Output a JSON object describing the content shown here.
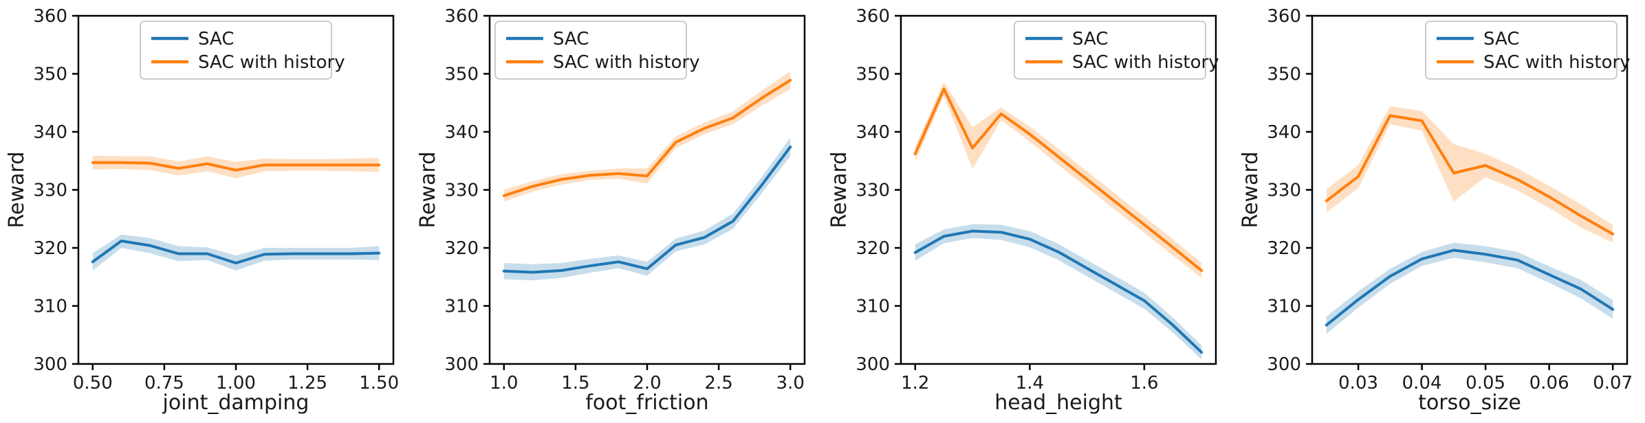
{
  "figure": {
    "ylabel": "Reward",
    "legend_entries": [
      "SAC",
      "SAC with history"
    ],
    "colors": {
      "sac": "#1f77b4",
      "sac_with_history": "#ff7f0e",
      "axis": "#000000",
      "text": "#1a1a1a",
      "legend_border": "#cccccc",
      "background": "#ffffff"
    },
    "band_alpha": 0.25
  },
  "chart_data": [
    {
      "type": "line",
      "title": "",
      "xlabel": "joint_damping",
      "ylabel": "Reward",
      "ylim": [
        300,
        360
      ],
      "yticks": [
        300,
        310,
        320,
        330,
        340,
        350,
        360
      ],
      "xticks": [
        {
          "v": 0.5,
          "label": "0.50"
        },
        {
          "v": 0.75,
          "label": "0.75"
        },
        {
          "v": 1.0,
          "label": "1.00"
        },
        {
          "v": 1.25,
          "label": "1.25"
        },
        {
          "v": 1.5,
          "label": "1.50"
        }
      ],
      "x": [
        0.5,
        0.6,
        0.7,
        0.8,
        0.9,
        1.0,
        1.1,
        1.2,
        1.3,
        1.4,
        1.5
      ],
      "legend_pos": "upper-center",
      "grid": false,
      "series": [
        {
          "name": "SAC",
          "color": "#1f77b4",
          "values": [
            317.6,
            321.2,
            320.4,
            319.0,
            319.0,
            317.4,
            318.9,
            319.0,
            319.0,
            319.0,
            319.1
          ],
          "lo": [
            316.1,
            320.0,
            319.1,
            317.7,
            317.9,
            316.1,
            317.8,
            318.0,
            318.0,
            318.0,
            317.9
          ],
          "hi": [
            319.1,
            322.3,
            321.7,
            320.3,
            320.1,
            318.7,
            320.0,
            320.0,
            320.0,
            320.0,
            320.3
          ]
        },
        {
          "name": "SAC with history",
          "color": "#ff7f0e",
          "values": [
            334.7,
            334.7,
            334.6,
            333.7,
            334.5,
            333.4,
            334.3,
            334.3,
            334.3,
            334.3,
            334.3
          ],
          "lo": [
            333.5,
            333.6,
            333.4,
            332.5,
            333.2,
            332.0,
            333.2,
            333.3,
            333.3,
            333.2,
            333.1
          ],
          "hi": [
            335.9,
            335.8,
            335.8,
            334.9,
            335.8,
            334.8,
            335.4,
            335.3,
            335.3,
            335.4,
            335.5
          ]
        }
      ]
    },
    {
      "type": "line",
      "title": "",
      "xlabel": "foot_friction",
      "ylabel": "Reward",
      "ylim": [
        300,
        360
      ],
      "yticks": [
        300,
        310,
        320,
        330,
        340,
        350,
        360
      ],
      "xticks": [
        {
          "v": 1.0,
          "label": "1.0"
        },
        {
          "v": 1.5,
          "label": "1.5"
        },
        {
          "v": 2.0,
          "label": "2.0"
        },
        {
          "v": 2.5,
          "label": "2.5"
        },
        {
          "v": 3.0,
          "label": "3.0"
        }
      ],
      "x": [
        1.0,
        1.2,
        1.4,
        1.6,
        1.8,
        2.0,
        2.2,
        2.4,
        2.6,
        2.8,
        3.0
      ],
      "legend_pos": "upper-left",
      "grid": false,
      "series": [
        {
          "name": "SAC",
          "color": "#1f77b4",
          "values": [
            316.0,
            315.8,
            316.1,
            316.9,
            317.6,
            316.4,
            320.5,
            321.8,
            324.6,
            330.8,
            337.4
          ],
          "lo": [
            314.6,
            314.4,
            314.8,
            315.7,
            316.5,
            315.2,
            319.4,
            320.6,
            323.3,
            329.4,
            335.8
          ],
          "hi": [
            317.4,
            317.2,
            317.4,
            318.1,
            318.7,
            317.6,
            321.6,
            323.0,
            325.9,
            332.2,
            339.0
          ]
        },
        {
          "name": "SAC with history",
          "color": "#ff7f0e",
          "values": [
            329.0,
            330.6,
            331.8,
            332.5,
            332.8,
            332.4,
            338.2,
            340.6,
            342.4,
            345.8,
            348.9
          ],
          "lo": [
            328.0,
            329.7,
            330.9,
            331.7,
            331.9,
            331.1,
            337.2,
            339.6,
            341.3,
            344.5,
            347.4
          ],
          "hi": [
            330.0,
            331.5,
            332.7,
            333.3,
            333.7,
            333.7,
            339.2,
            341.6,
            343.5,
            347.1,
            350.4
          ]
        }
      ]
    },
    {
      "type": "line",
      "title": "",
      "xlabel": "head_height",
      "ylabel": "Reward",
      "ylim": [
        300,
        360
      ],
      "yticks": [
        300,
        310,
        320,
        330,
        340,
        350,
        360
      ],
      "xticks": [
        {
          "v": 1.2,
          "label": "1.2"
        },
        {
          "v": 1.4,
          "label": "1.4"
        },
        {
          "v": 1.6,
          "label": "1.6"
        }
      ],
      "x": [
        1.2,
        1.25,
        1.3,
        1.35,
        1.4,
        1.45,
        1.5,
        1.55,
        1.6,
        1.65,
        1.7
      ],
      "legend_pos": "upper-right",
      "grid": false,
      "series": [
        {
          "name": "SAC",
          "color": "#1f77b4",
          "values": [
            319.2,
            322.0,
            322.9,
            322.7,
            321.5,
            319.3,
            316.5,
            313.7,
            310.9,
            306.7,
            302.0
          ],
          "lo": [
            317.8,
            320.8,
            321.7,
            321.4,
            320.1,
            317.9,
            315.1,
            312.3,
            309.5,
            305.4,
            300.8
          ],
          "hi": [
            320.6,
            323.2,
            324.1,
            324.0,
            322.9,
            320.7,
            317.9,
            315.1,
            312.3,
            308.0,
            303.2
          ]
        },
        {
          "name": "SAC with history",
          "color": "#ff7f0e",
          "values": [
            336.2,
            347.4,
            337.2,
            343.1,
            339.6,
            335.7,
            331.8,
            327.9,
            324.0,
            320.1,
            316.1
          ],
          "lo": [
            334.9,
            346.2,
            333.6,
            342.0,
            338.3,
            334.3,
            330.4,
            326.5,
            322.6,
            318.7,
            314.8
          ],
          "hi": [
            337.5,
            348.6,
            340.8,
            344.2,
            340.9,
            337.1,
            333.2,
            329.3,
            325.4,
            321.5,
            317.4
          ]
        }
      ]
    },
    {
      "type": "line",
      "title": "",
      "xlabel": "torso_size",
      "ylabel": "Reward",
      "ylim": [
        300,
        360
      ],
      "yticks": [
        300,
        310,
        320,
        330,
        340,
        350,
        360
      ],
      "xticks": [
        {
          "v": 0.03,
          "label": "0.03"
        },
        {
          "v": 0.04,
          "label": "0.04"
        },
        {
          "v": 0.05,
          "label": "0.05"
        },
        {
          "v": 0.06,
          "label": "0.06"
        },
        {
          "v": 0.07,
          "label": "0.07"
        }
      ],
      "x": [
        0.025,
        0.03,
        0.035,
        0.04,
        0.045,
        0.05,
        0.055,
        0.06,
        0.065,
        0.07
      ],
      "legend_pos": "upper-right",
      "grid": false,
      "series": [
        {
          "name": "SAC",
          "color": "#1f77b4",
          "values": [
            306.7,
            311.1,
            315.1,
            318.1,
            319.6,
            318.9,
            317.9,
            315.4,
            312.9,
            309.4
          ],
          "lo": [
            305.2,
            309.7,
            313.8,
            316.9,
            318.3,
            317.5,
            316.5,
            314.0,
            311.3,
            307.8
          ],
          "hi": [
            308.2,
            312.5,
            316.4,
            319.3,
            320.9,
            320.3,
            319.3,
            316.8,
            314.5,
            311.0
          ]
        },
        {
          "name": "SAC with history",
          "color": "#ff7f0e",
          "values": [
            328.1,
            332.3,
            342.8,
            341.9,
            332.9,
            334.2,
            331.8,
            328.8,
            325.5,
            322.4
          ],
          "lo": [
            326.1,
            330.3,
            341.3,
            340.2,
            328.0,
            332.2,
            329.9,
            326.9,
            323.5,
            320.9
          ],
          "hi": [
            330.1,
            334.3,
            344.4,
            343.6,
            337.9,
            336.2,
            333.7,
            330.7,
            327.5,
            323.9
          ]
        }
      ]
    }
  ]
}
